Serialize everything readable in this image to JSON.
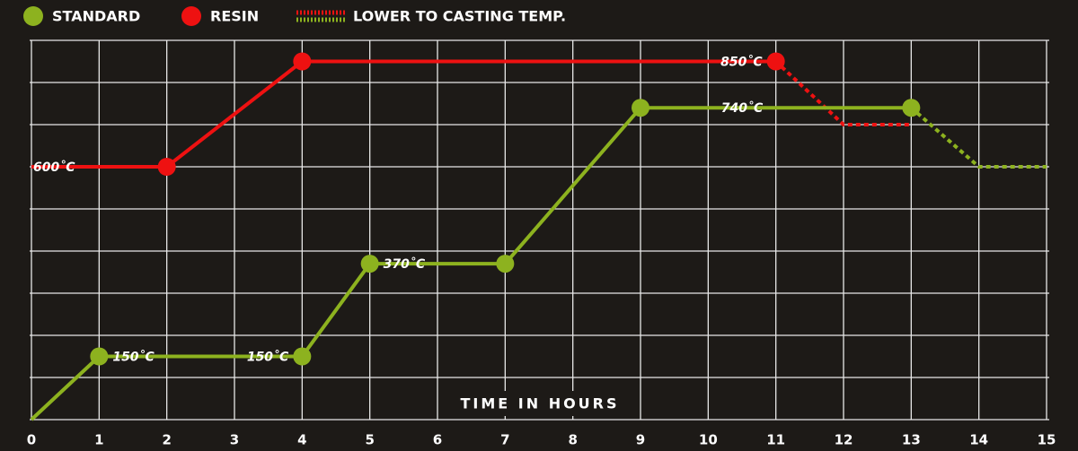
{
  "chart_data": {
    "type": "line",
    "x_label": "TIME IN HOURS",
    "xlim": [
      0,
      15
    ],
    "xticks": [
      0,
      1,
      2,
      3,
      4,
      5,
      6,
      7,
      8,
      9,
      10,
      11,
      12,
      13,
      14,
      15
    ],
    "ylim": [
      0,
      900
    ],
    "yticks": [
      0,
      100,
      200,
      300,
      400,
      500,
      600,
      700,
      800,
      900
    ],
    "grid": true,
    "legend": "top-left",
    "series": [
      {
        "name": "STANDARD",
        "color": "#8db21f",
        "x": [
          0,
          1,
          4,
          5,
          7,
          9,
          13
        ],
        "values": [
          0,
          150,
          150,
          370,
          370,
          740,
          740
        ],
        "value_labels": [
          null,
          "150˚C",
          "150˚C",
          "370˚C",
          null,
          "740˚C",
          null
        ]
      },
      {
        "name": "RESIN",
        "color": "#ee1111",
        "x": [
          0,
          2,
          4,
          11
        ],
        "values": [
          600,
          600,
          850,
          850
        ],
        "value_labels": [
          "600˚C",
          null,
          null,
          "850˚C"
        ]
      }
    ],
    "casting": {
      "name": "LOWER TO CASTING TEMP.",
      "segments": [
        {
          "color": "#ee1111",
          "x": [
            11,
            12,
            13
          ],
          "values": [
            850,
            700,
            700
          ]
        },
        {
          "color": "#8db21f",
          "x": [
            13,
            14,
            15
          ],
          "values": [
            740,
            600,
            600
          ]
        }
      ]
    }
  }
}
